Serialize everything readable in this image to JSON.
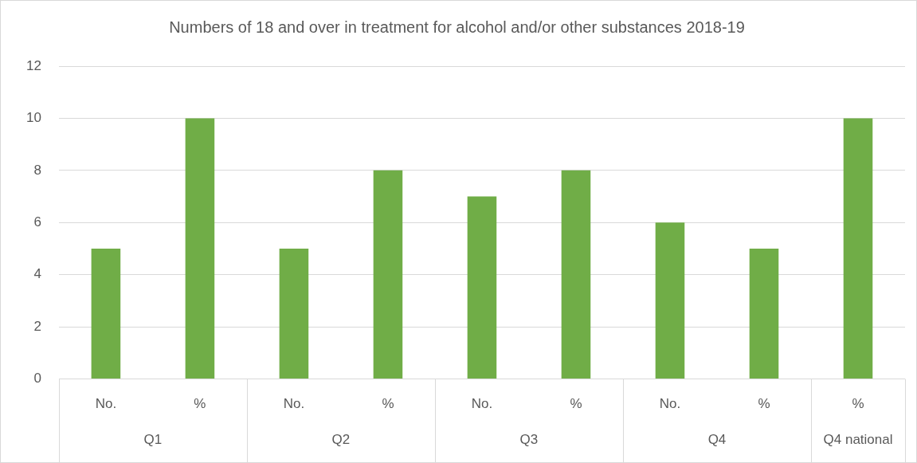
{
  "chart_data": {
    "type": "bar",
    "title": "Numbers of 18 and over in treatment for alcohol and/or other substances 2018-19",
    "categories": [
      "No.",
      "%",
      "No.",
      "%",
      "No.",
      "%",
      "No.",
      "%",
      "%"
    ],
    "values": [
      5,
      10,
      5,
      8,
      7,
      8,
      6,
      5,
      10
    ],
    "color": "#70ad47",
    "ylim": [
      0,
      12
    ],
    "yticks": [
      0,
      2,
      4,
      6,
      8,
      10,
      12
    ],
    "grid": "y",
    "legend": false,
    "annotations": [
      "Q1",
      "Q2",
      "Q3",
      "Q4",
      "Q4 national"
    ]
  }
}
